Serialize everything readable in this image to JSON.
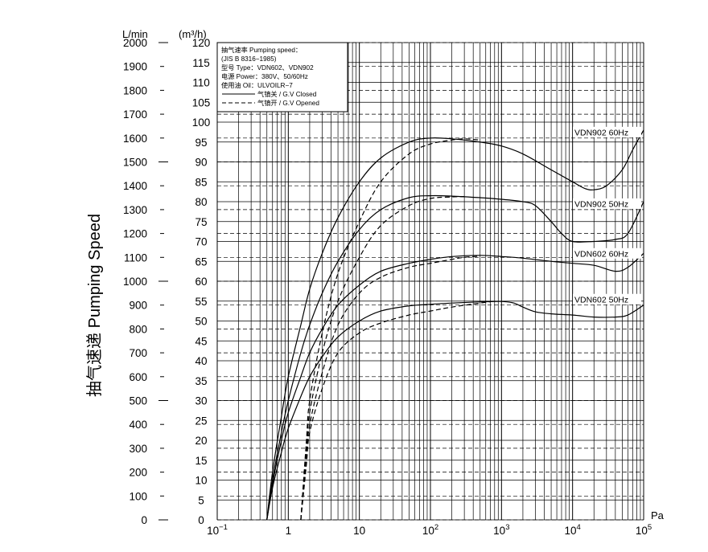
{
  "chart_data": {
    "type": "line",
    "title": "",
    "ylabel": "抽气速递 Pumping Speed",
    "x_unit": "Pa",
    "y_unit_left": "L/min",
    "y_unit_right": "(m³/h)",
    "x_scale": "log",
    "xlim": [
      0.1,
      100000
    ],
    "ylim": [
      0,
      120
    ],
    "grid": true,
    "legend_position": "top-left",
    "x_ticks": [
      {
        "value": 0.1,
        "base": "10",
        "exp": "−1"
      },
      {
        "value": 1,
        "base": "1",
        "exp": ""
      },
      {
        "value": 10,
        "base": "10",
        "exp": ""
      },
      {
        "value": 100,
        "base": "10",
        "exp": "2"
      },
      {
        "value": 1000,
        "base": "10",
        "exp": "3"
      },
      {
        "value": 10000,
        "base": "10",
        "exp": "4"
      },
      {
        "value": 100000,
        "base": "10",
        "exp": "5"
      }
    ],
    "y_ticks_m3h": [
      0,
      5,
      10,
      15,
      20,
      25,
      30,
      35,
      40,
      45,
      50,
      55,
      60,
      65,
      70,
      75,
      80,
      85,
      90,
      95,
      100,
      105,
      110,
      115,
      120
    ],
    "y_ticks_lmin": [
      0,
      100,
      200,
      300,
      400,
      500,
      600,
      700,
      800,
      900,
      1000,
      1100,
      1200,
      1300,
      1400,
      1500,
      1600,
      1700,
      1800,
      1900,
      2000
    ],
    "legend": {
      "lines": [
        "抽气速率 Pumping speed：",
        "(JIS B 8316−1985)",
        "型号 Type：VDN602、VDN902",
        "电源 Power：380V、50/60Hz",
        "使用油 Oil：ULVOILR−7"
      ],
      "closed_label": "气镇关 / G.V Closed",
      "opened_label": "气镇开 / G.V Opened"
    },
    "series": [
      {
        "name": "VDN902 60Hz",
        "style": "solid",
        "points": [
          [
            0.5,
            0
          ],
          [
            0.6,
            12
          ],
          [
            0.8,
            26
          ],
          [
            1,
            36
          ],
          [
            1.5,
            49
          ],
          [
            2,
            58
          ],
          [
            3,
            67
          ],
          [
            5,
            76
          ],
          [
            10,
            85
          ],
          [
            20,
            91
          ],
          [
            50,
            95
          ],
          [
            100,
            96
          ],
          [
            200,
            95.8
          ],
          [
            500,
            95
          ],
          [
            1000,
            94
          ],
          [
            2000,
            92
          ],
          [
            5000,
            88
          ],
          [
            10000,
            85
          ],
          [
            15000,
            83.3
          ],
          [
            20000,
            83
          ],
          [
            30000,
            84
          ],
          [
            50000,
            88
          ],
          [
            70000,
            93
          ],
          [
            100000,
            98
          ]
        ]
      },
      {
        "name": "VDN902 60Hz",
        "style": "dashed",
        "points": [
          [
            1.5,
            0
          ],
          [
            1.8,
            20
          ],
          [
            2,
            30
          ],
          [
            3,
            47
          ],
          [
            5,
            62
          ],
          [
            10,
            75
          ],
          [
            20,
            85
          ],
          [
            50,
            92
          ],
          [
            100,
            94.5
          ],
          [
            200,
            95.5
          ],
          [
            300,
            95.8
          ],
          [
            500,
            95.5
          ]
        ]
      },
      {
        "name": "VDN902 50Hz",
        "style": "solid",
        "points": [
          [
            0.5,
            0
          ],
          [
            0.6,
            10
          ],
          [
            0.8,
            22
          ],
          [
            1,
            30
          ],
          [
            1.5,
            42
          ],
          [
            2,
            49
          ],
          [
            3,
            57
          ],
          [
            5,
            65
          ],
          [
            10,
            73
          ],
          [
            20,
            78
          ],
          [
            50,
            81
          ],
          [
            100,
            81.5
          ],
          [
            200,
            81.4
          ],
          [
            500,
            81
          ],
          [
            1000,
            80.6
          ],
          [
            2000,
            80
          ],
          [
            3000,
            79
          ],
          [
            5000,
            75
          ],
          [
            7000,
            72
          ],
          [
            10000,
            70
          ],
          [
            20000,
            70
          ],
          [
            40000,
            70.5
          ],
          [
            60000,
            72
          ],
          [
            100000,
            80
          ]
        ]
      },
      {
        "name": "VDN902 50Hz",
        "style": "dashed",
        "points": [
          [
            1.5,
            0
          ],
          [
            1.8,
            18
          ],
          [
            2,
            27
          ],
          [
            3,
            42
          ],
          [
            5,
            55
          ],
          [
            10,
            66
          ],
          [
            20,
            74
          ],
          [
            50,
            79
          ],
          [
            100,
            80.8
          ],
          [
            200,
            81.2
          ],
          [
            300,
            81.3
          ]
        ]
      },
      {
        "name": "VDN602 60Hz",
        "style": "solid",
        "points": [
          [
            0.5,
            0
          ],
          [
            0.6,
            9
          ],
          [
            0.8,
            20
          ],
          [
            1,
            27
          ],
          [
            1.5,
            36
          ],
          [
            2,
            42
          ],
          [
            3,
            48
          ],
          [
            5,
            54
          ],
          [
            10,
            59
          ],
          [
            20,
            62.5
          ],
          [
            50,
            64.5
          ],
          [
            100,
            65.5
          ],
          [
            200,
            66.2
          ],
          [
            500,
            66.5
          ],
          [
            1000,
            66.2
          ],
          [
            2000,
            65.8
          ],
          [
            5000,
            65
          ],
          [
            10000,
            64.5
          ],
          [
            20000,
            64
          ],
          [
            40000,
            62.5
          ],
          [
            60000,
            63.5
          ],
          [
            100000,
            67
          ]
        ]
      },
      {
        "name": "VDN602 60Hz",
        "style": "dashed",
        "points": [
          [
            1.5,
            0
          ],
          [
            1.8,
            16
          ],
          [
            2,
            24
          ],
          [
            3,
            37
          ],
          [
            5,
            49
          ],
          [
            10,
            57
          ],
          [
            20,
            61
          ],
          [
            50,
            63.5
          ],
          [
            100,
            64.5
          ],
          [
            200,
            65.5
          ],
          [
            300,
            66
          ],
          [
            500,
            66.3
          ]
        ]
      },
      {
        "name": "VDN602 50Hz",
        "style": "solid",
        "points": [
          [
            0.5,
            0
          ],
          [
            0.6,
            8
          ],
          [
            0.8,
            17
          ],
          [
            1,
            23
          ],
          [
            1.5,
            31
          ],
          [
            2,
            36
          ],
          [
            3,
            41
          ],
          [
            5,
            46
          ],
          [
            10,
            50
          ],
          [
            20,
            52.5
          ],
          [
            50,
            53.8
          ],
          [
            100,
            54.2
          ],
          [
            200,
            54.5
          ],
          [
            500,
            54.8
          ],
          [
            1000,
            54.9
          ],
          [
            1500,
            54.5
          ],
          [
            2000,
            53.5
          ],
          [
            3000,
            52.3
          ],
          [
            5000,
            51.8
          ],
          [
            10000,
            51.5
          ],
          [
            20000,
            51
          ],
          [
            40000,
            51
          ],
          [
            60000,
            51.5
          ],
          [
            100000,
            54
          ]
        ]
      },
      {
        "name": "VDN602 50Hz",
        "style": "dashed",
        "points": [
          [
            1.5,
            0
          ],
          [
            1.8,
            14
          ],
          [
            2,
            22
          ],
          [
            3,
            33
          ],
          [
            5,
            42
          ],
          [
            10,
            47
          ],
          [
            20,
            49.5
          ],
          [
            50,
            51.5
          ],
          [
            100,
            52.5
          ],
          [
            200,
            53.5
          ],
          [
            500,
            54.5
          ],
          [
            800,
            55
          ]
        ]
      }
    ],
    "series_labels": [
      {
        "text": "VDN902  60Hz",
        "y": 97
      },
      {
        "text": "VDN902  50Hz",
        "y": 79
      },
      {
        "text": "VDN602  60Hz",
        "y": 66.5
      },
      {
        "text": "VDN602  50Hz",
        "y": 55
      }
    ]
  }
}
